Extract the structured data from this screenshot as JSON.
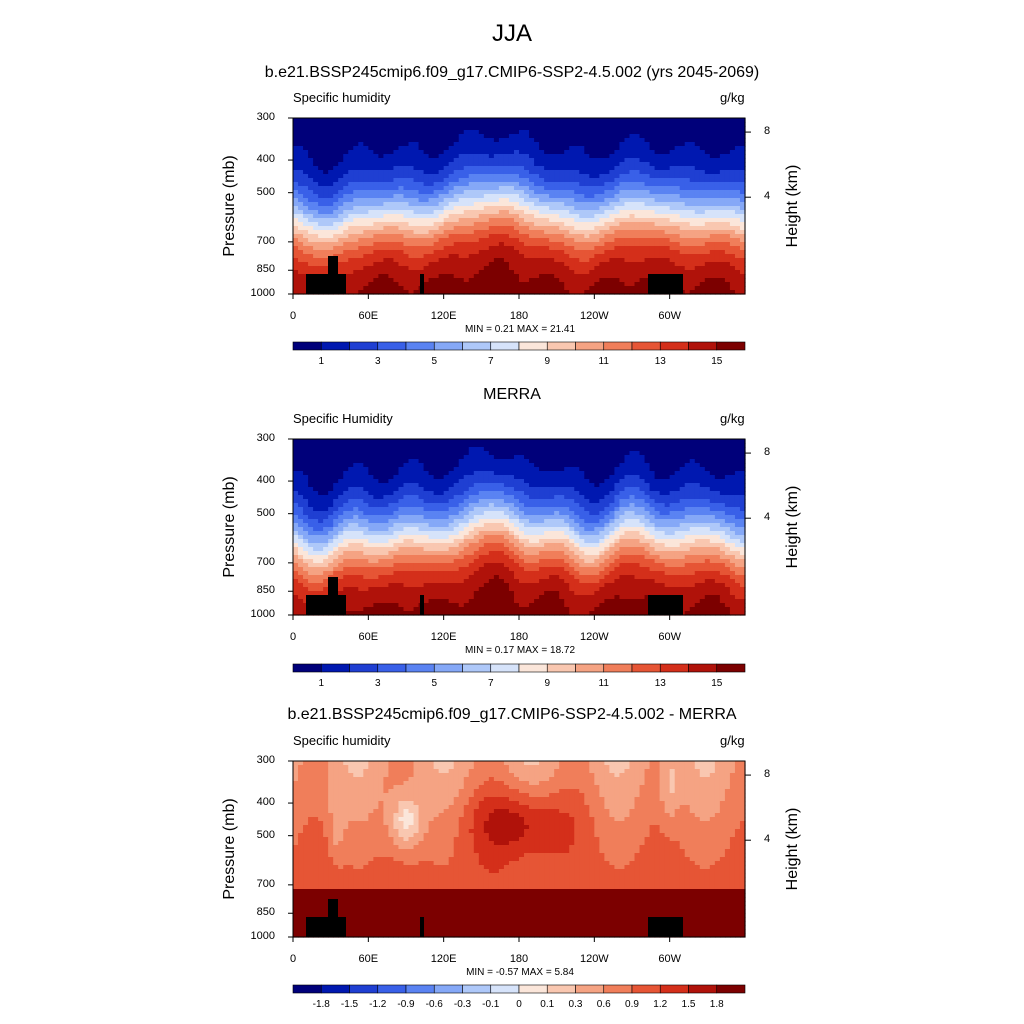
{
  "figure_title": "JJA",
  "colors": {
    "absolute": [
      "#00007a",
      "#0018b0",
      "#1f3fd2",
      "#3960e8",
      "#5a83f2",
      "#85a8f7",
      "#aec8f9",
      "#d6e3fa",
      "#fbe6da",
      "#f9c7b0",
      "#f5a383",
      "#f07e5a",
      "#e65535",
      "#d42f1a",
      "#b0120a",
      "#7c0000"
    ],
    "difference": [
      "#00007a",
      "#0018b0",
      "#1f3fd2",
      "#3960e8",
      "#5a83f2",
      "#85a8f7",
      "#aec8f9",
      "#d6e3fa",
      "#fbe6da",
      "#f9c7b0",
      "#f5a383",
      "#f07e5a",
      "#e65535",
      "#d42f1a",
      "#b0120a",
      "#7c0000"
    ]
  },
  "chart_data": [
    {
      "type": "heatmap",
      "title": "b.e21.BSSP245cmip6.f09_g17.CMIP6-SSP2-4.5.002 (yrs 2045-2069)",
      "left_string": "Specific humidity",
      "right_string": "g/kg",
      "ylabel": "Pressure (mb)",
      "ylabel_right": "Height (km)",
      "yticks": [
        "300",
        "400",
        "500",
        "700",
        "850",
        "1000"
      ],
      "yticks_right": [
        "8",
        "4"
      ],
      "xticks": [
        "0",
        "60E",
        "120E",
        "180",
        "120W",
        "60W"
      ],
      "minmax": "MIN =   0.21  MAX =  21.41",
      "colorbar_labels": [
        "1",
        "3",
        "5",
        "7",
        "9",
        "11",
        "13",
        "15"
      ],
      "min": 0.21,
      "max": 21.41,
      "kind": "absolute"
    },
    {
      "type": "heatmap",
      "title": "MERRA",
      "left_string": "Specific Humidity",
      "right_string": "g/kg",
      "ylabel": "Pressure (mb)",
      "ylabel_right": "Height (km)",
      "yticks": [
        "300",
        "400",
        "500",
        "700",
        "850",
        "1000"
      ],
      "yticks_right": [
        "8",
        "4"
      ],
      "xticks": [
        "0",
        "60E",
        "120E",
        "180",
        "120W",
        "60W"
      ],
      "minmax": "MIN =   0.17  MAX =  18.72",
      "colorbar_labels": [
        "1",
        "3",
        "5",
        "7",
        "9",
        "11",
        "13",
        "15"
      ],
      "min": 0.17,
      "max": 18.72,
      "kind": "absolute"
    },
    {
      "type": "heatmap",
      "title": "b.e21.BSSP245cmip6.f09_g17.CMIP6-SSP2-4.5.002 - MERRA",
      "left_string": "Specific humidity",
      "right_string": "g/kg",
      "ylabel": "Pressure (mb)",
      "ylabel_right": "Height (km)",
      "yticks": [
        "300",
        "400",
        "500",
        "700",
        "850",
        "1000"
      ],
      "yticks_right": [
        "8",
        "4"
      ],
      "xticks": [
        "0",
        "60E",
        "120E",
        "180",
        "120W",
        "60W"
      ],
      "minmax": "MIN =  -0.57  MAX =   5.84",
      "colorbar_labels": [
        "-1.8",
        "-1.5",
        "-1.2",
        "-0.9",
        "-0.6",
        "-0.3",
        "-0.1",
        "0",
        "0.1",
        "0.3",
        "0.6",
        "0.9",
        "1.2",
        "1.5",
        "1.8"
      ],
      "min": -0.57,
      "max": 5.84,
      "kind": "difference"
    }
  ]
}
